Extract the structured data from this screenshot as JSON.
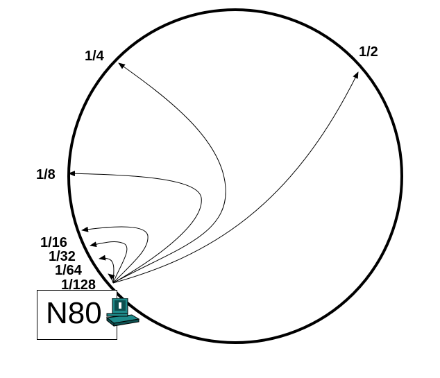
{
  "diagram": {
    "node_label": "N80",
    "finger_labels": [
      "1/2",
      "1/4",
      "1/8",
      "1/16",
      "1/32",
      "1/64",
      "1/128"
    ],
    "icons": {
      "node_computer": "computer-icon"
    },
    "colors": {
      "stroke": "#000000",
      "computer_teal": "#1f8a8a",
      "computer_dark": "#0d4f4f"
    }
  }
}
